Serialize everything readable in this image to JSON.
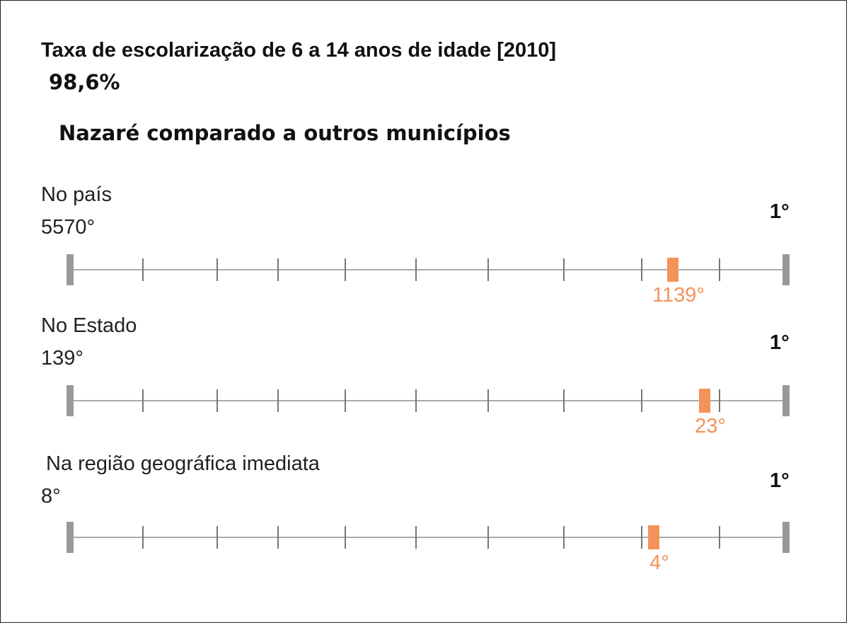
{
  "title": "Taxa de escolarização de 6 a 14 anos de idade [2010]",
  "value": "98,6%",
  "subtitle": "Nazaré comparado a outros municípios",
  "rankings": [
    {
      "label": "No país",
      "worst": "5570°",
      "best": "1°",
      "position": "1139°"
    },
    {
      "label": "No Estado",
      "worst": "139°",
      "best": "1°",
      "position": "23°"
    },
    {
      "label": "Na região geográfica imediata",
      "worst": "8°",
      "best": "1°",
      "position": "4°"
    }
  ]
}
